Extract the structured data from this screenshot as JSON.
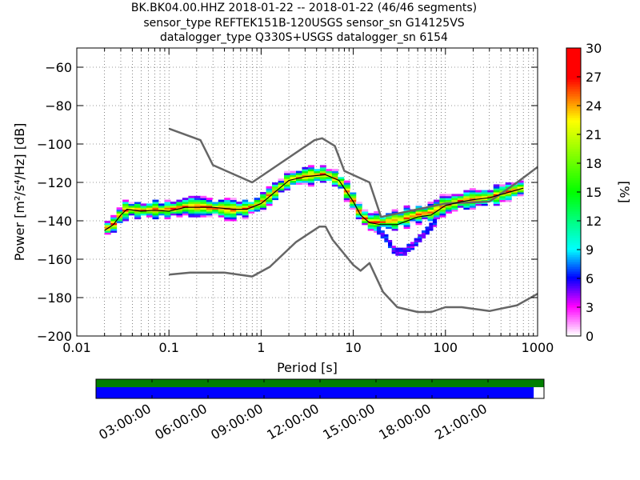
{
  "header": {
    "line1": "BK.BK04.00.HHZ   2018-01-22 -- 2018-01-22  (46/46 segments)",
    "line2": "sensor_type REFTEK151B-120USGS sensor_sn G14125VS",
    "line3": "datalogger_type Q330S+USGS datalogger_sn 6154"
  },
  "chart_data": {
    "type": "heatmap",
    "subtype": "probabilistic-power-spectral-density",
    "xlabel": "Period [s]",
    "ylabel": "Power [m²/s⁴/Hz] [dB]",
    "xscale": "log",
    "xlim": [
      0.01,
      1000
    ],
    "ylim": [
      -200,
      -50
    ],
    "xticks": [
      0.01,
      0.1,
      1,
      10,
      100,
      1000
    ],
    "xtick_labels": [
      "0.01",
      "0.1",
      "1",
      "10",
      "100",
      "1000"
    ],
    "yticks": [
      -60,
      -80,
      -100,
      -120,
      -140,
      -160,
      -180,
      -200
    ],
    "ytick_labels": [
      "−60",
      "−80",
      "−100",
      "−120",
      "−140",
      "−160",
      "−180",
      "−200"
    ],
    "grid": "dotted",
    "colorbar": {
      "label": "[%]",
      "range": [
        0,
        30
      ],
      "ticks": [
        0,
        3,
        6,
        9,
        12,
        15,
        18,
        21,
        24,
        27,
        30
      ]
    },
    "noise_models": {
      "high": [
        [
          0.1,
          -92
        ],
        [
          0.22,
          -98
        ],
        [
          0.3,
          -111
        ],
        [
          0.8,
          -120
        ],
        [
          3.8,
          -98
        ],
        [
          4.6,
          -97
        ],
        [
          6.3,
          -101
        ],
        [
          8,
          -114
        ],
        [
          15,
          -120
        ],
        [
          20,
          -138
        ],
        [
          100,
          -131
        ],
        [
          300,
          -130
        ],
        [
          600,
          -120
        ],
        [
          1000,
          -112
        ]
      ],
      "low": [
        [
          0.1,
          -168
        ],
        [
          0.17,
          -167
        ],
        [
          0.4,
          -167
        ],
        [
          0.8,
          -169
        ],
        [
          1.24,
          -164
        ],
        [
          2.4,
          -151
        ],
        [
          4.3,
          -143
        ],
        [
          5,
          -143
        ],
        [
          6,
          -150
        ],
        [
          10,
          -163
        ],
        [
          12,
          -166
        ],
        [
          15,
          -162
        ],
        [
          21,
          -177
        ],
        [
          30,
          -185
        ],
        [
          50,
          -187.5
        ],
        [
          70,
          -187.5
        ],
        [
          100,
          -185
        ],
        [
          150,
          -185
        ],
        [
          300,
          -187
        ],
        [
          600,
          -184
        ],
        [
          1000,
          -178
        ]
      ]
    },
    "mode_curve": [
      [
        0.02,
        -145
      ],
      [
        0.025,
        -142
      ],
      [
        0.03,
        -137
      ],
      [
        0.035,
        -134
      ],
      [
        0.05,
        -135
      ],
      [
        0.07,
        -134.5
      ],
      [
        0.1,
        -135
      ],
      [
        0.15,
        -133
      ],
      [
        0.2,
        -133
      ],
      [
        0.3,
        -133
      ],
      [
        0.5,
        -134
      ],
      [
        0.7,
        -134
      ],
      [
        1,
        -131
      ],
      [
        1.5,
        -124
      ],
      [
        2,
        -119
      ],
      [
        3,
        -117
      ],
      [
        5,
        -116
      ],
      [
        7,
        -119
      ],
      [
        10,
        -130
      ],
      [
        12,
        -137
      ],
      [
        15,
        -141
      ],
      [
        20,
        -142
      ],
      [
        30,
        -142
      ],
      [
        50,
        -138
      ],
      [
        70,
        -137
      ],
      [
        100,
        -132
      ],
      [
        150,
        -130
      ],
      [
        200,
        -129
      ],
      [
        300,
        -128
      ],
      [
        500,
        -125
      ],
      [
        700,
        -123
      ]
    ],
    "density_center": [
      [
        0.02,
        -145
      ],
      [
        0.025,
        -142
      ],
      [
        0.03,
        -137
      ],
      [
        0.035,
        -134
      ],
      [
        0.05,
        -135
      ],
      [
        0.07,
        -134.5
      ],
      [
        0.1,
        -134.5
      ],
      [
        0.15,
        -133
      ],
      [
        0.2,
        -133
      ],
      [
        0.3,
        -133.5
      ],
      [
        0.5,
        -134.5
      ],
      [
        0.7,
        -134
      ],
      [
        1,
        -131
      ],
      [
        1.5,
        -124
      ],
      [
        2,
        -119
      ],
      [
        3,
        -117
      ],
      [
        5,
        -116
      ],
      [
        7,
        -119
      ],
      [
        10,
        -130
      ],
      [
        12,
        -137
      ],
      [
        15,
        -141
      ],
      [
        20,
        -141
      ],
      [
        30,
        -140
      ],
      [
        50,
        -137
      ],
      [
        70,
        -136
      ],
      [
        100,
        -132
      ],
      [
        150,
        -130
      ],
      [
        200,
        -129
      ],
      [
        300,
        -128
      ],
      [
        500,
        -125
      ],
      [
        700,
        -123
      ]
    ],
    "density_tail_low": [
      [
        18,
        -145
      ],
      [
        22,
        -148
      ],
      [
        28,
        -156
      ],
      [
        35,
        -157
      ],
      [
        45,
        -153
      ],
      [
        60,
        -147
      ],
      [
        80,
        -141
      ]
    ],
    "time_axis": {
      "tick_labels": [
        "03:00:00",
        "06:00:00",
        "09:00:00",
        "12:00:00",
        "15:00:00",
        "18:00:00",
        "21:00:00"
      ],
      "coverage_fraction": 0.977,
      "top_color": "#007f00",
      "fill_color": "#0000ff"
    }
  }
}
